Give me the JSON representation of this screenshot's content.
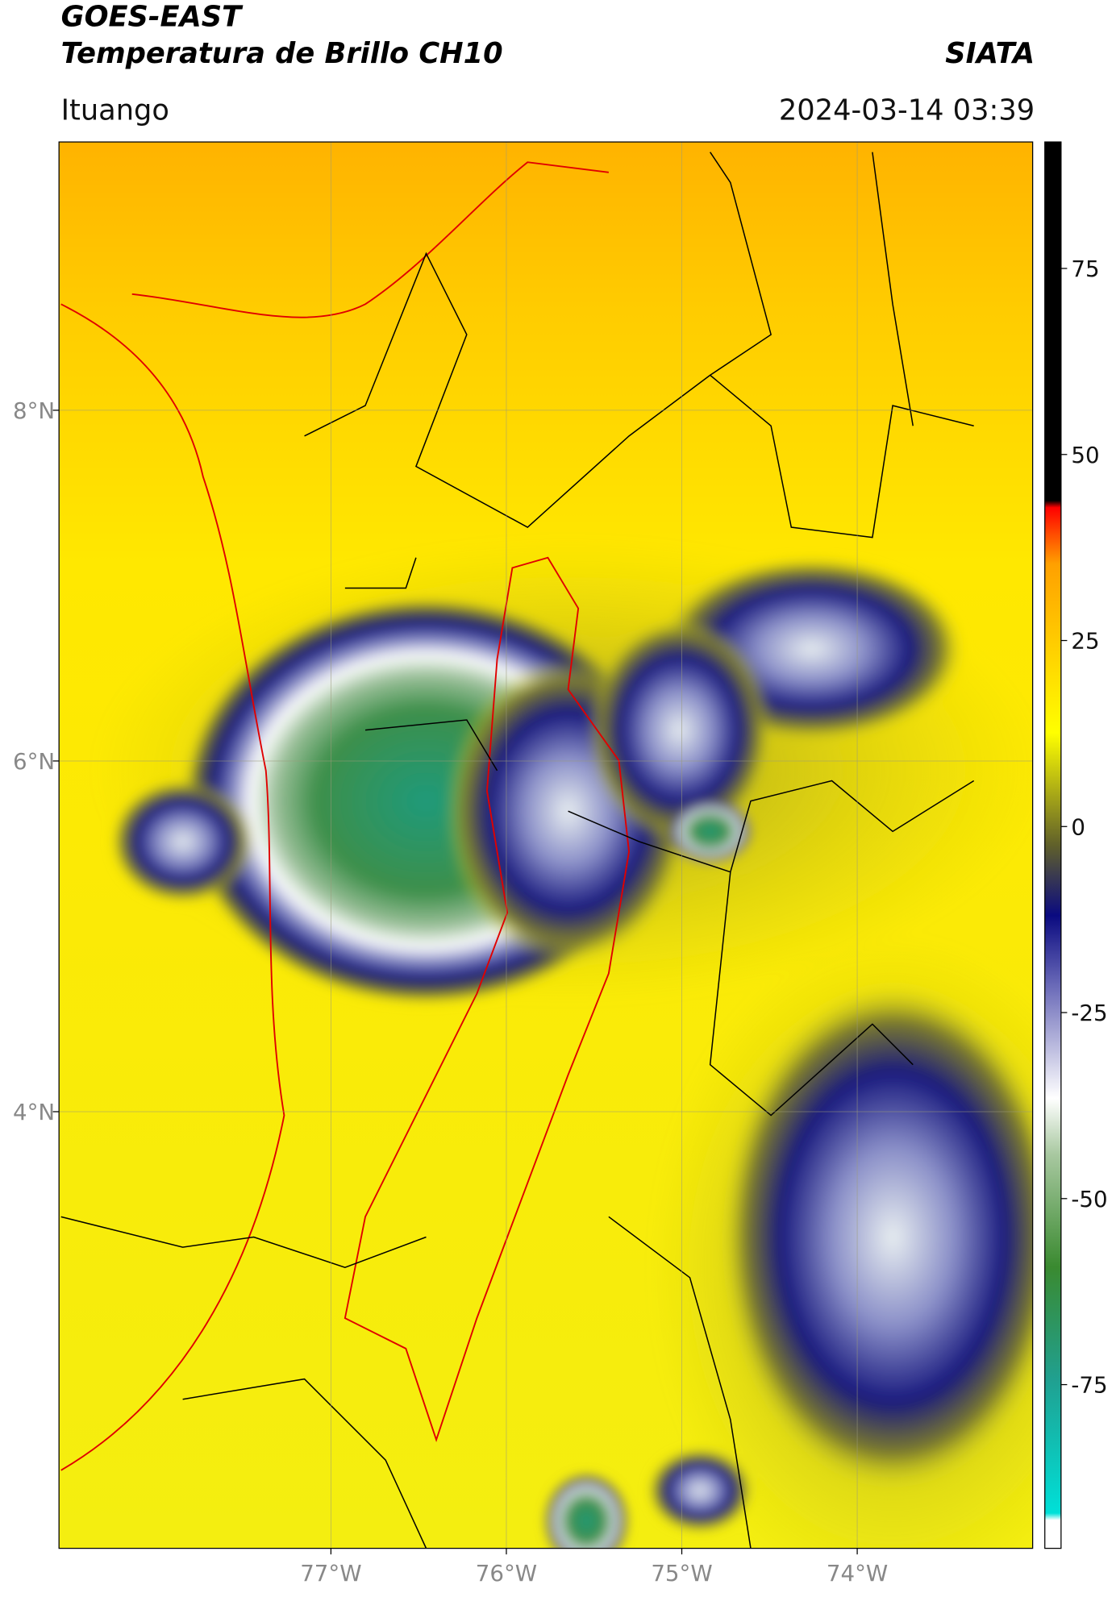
{
  "chart_data": {
    "type": "map",
    "title": "GOES-EAST",
    "subtitle": "Temperatura de Brillo CH10",
    "source": "SIATA",
    "location": "Ituango",
    "timestamp": "2024-03-14 03:39",
    "xlim": [
      -78.55,
      -73.0
    ],
    "ylim": [
      1.51,
      9.53
    ],
    "xticks": [
      {
        "value": -77,
        "label": "77°W"
      },
      {
        "value": -76,
        "label": "76°W"
      },
      {
        "value": -75,
        "label": "75°W"
      },
      {
        "value": -74,
        "label": "74°W"
      }
    ],
    "yticks": [
      {
        "value": 8,
        "label": "8°N"
      },
      {
        "value": 6,
        "label": "6°N"
      },
      {
        "value": 4,
        "label": "4°N"
      }
    ],
    "grid": true,
    "colorbar": {
      "lim": [
        -97,
        92
      ],
      "ticks": [
        75,
        50,
        25,
        0,
        -25,
        -50,
        -75
      ]
    }
  }
}
